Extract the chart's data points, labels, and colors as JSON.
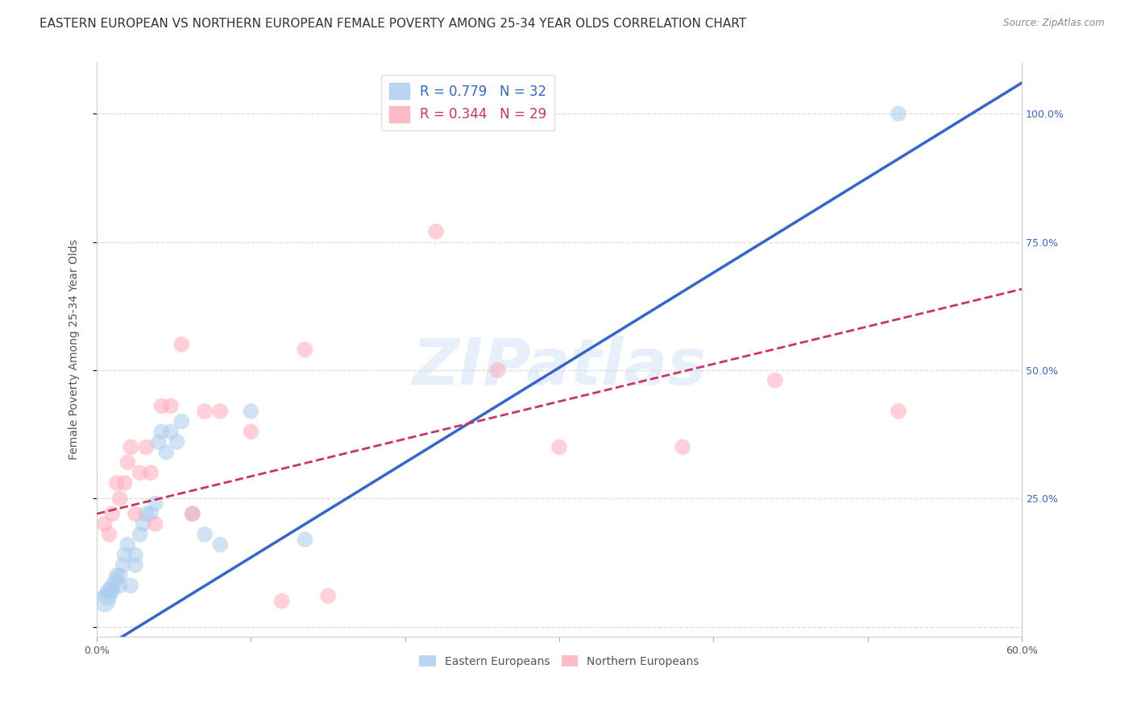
{
  "title": "EASTERN EUROPEAN VS NORTHERN EUROPEAN FEMALE POVERTY AMONG 25-34 YEAR OLDS CORRELATION CHART",
  "source": "Source: ZipAtlas.com",
  "ylabel": "Female Poverty Among 25-34 Year Olds",
  "xlim": [
    0.0,
    0.6
  ],
  "ylim": [
    -0.02,
    1.1
  ],
  "plot_ylim": [
    -0.02,
    1.1
  ],
  "xticks": [
    0.0,
    0.1,
    0.2,
    0.3,
    0.4,
    0.5,
    0.6
  ],
  "xticklabels": [
    "0.0%",
    "",
    "",
    "",
    "",
    "",
    "60.0%"
  ],
  "yticks": [
    0.0,
    0.25,
    0.5,
    0.75,
    1.0
  ],
  "yticklabels_right": [
    "",
    "25.0%",
    "50.0%",
    "75.0%",
    "100.0%"
  ],
  "watermark": "ZIPatlas",
  "eastern_europeans": {
    "color": "#aaccee",
    "trendline_color": "#3366cc",
    "x": [
      0.005,
      0.007,
      0.008,
      0.01,
      0.01,
      0.012,
      0.013,
      0.015,
      0.015,
      0.017,
      0.018,
      0.02,
      0.022,
      0.025,
      0.025,
      0.028,
      0.03,
      0.032,
      0.035,
      0.038,
      0.04,
      0.042,
      0.045,
      0.048,
      0.052,
      0.055,
      0.062,
      0.07,
      0.08,
      0.1,
      0.135,
      0.52
    ],
    "y": [
      0.05,
      0.06,
      0.07,
      0.07,
      0.08,
      0.09,
      0.1,
      0.08,
      0.1,
      0.12,
      0.14,
      0.16,
      0.08,
      0.12,
      0.14,
      0.18,
      0.2,
      0.22,
      0.22,
      0.24,
      0.36,
      0.38,
      0.34,
      0.38,
      0.36,
      0.4,
      0.22,
      0.18,
      0.16,
      0.42,
      0.17,
      1.0
    ],
    "sizes": [
      400,
      300,
      250,
      200,
      200,
      200,
      200,
      200,
      200,
      200,
      200,
      200,
      200,
      200,
      200,
      200,
      200,
      200,
      200,
      200,
      200,
      200,
      200,
      200,
      200,
      200,
      200,
      200,
      200,
      200,
      200,
      200
    ],
    "trendline_intercept": -0.05,
    "trendline_slope": 1.85
  },
  "northern_europeans": {
    "color": "#ffaabb",
    "trendline_color": "#cc3366",
    "x": [
      0.005,
      0.008,
      0.01,
      0.013,
      0.015,
      0.018,
      0.02,
      0.022,
      0.025,
      0.028,
      0.032,
      0.035,
      0.038,
      0.042,
      0.048,
      0.055,
      0.062,
      0.07,
      0.08,
      0.1,
      0.12,
      0.135,
      0.15,
      0.22,
      0.26,
      0.3,
      0.38,
      0.44,
      0.52
    ],
    "y": [
      0.2,
      0.18,
      0.22,
      0.28,
      0.25,
      0.28,
      0.32,
      0.35,
      0.22,
      0.3,
      0.35,
      0.3,
      0.2,
      0.43,
      0.43,
      0.55,
      0.22,
      0.42,
      0.42,
      0.38,
      0.05,
      0.54,
      0.06,
      0.77,
      0.5,
      0.35,
      0.35,
      0.48,
      0.42
    ],
    "sizes": [
      200,
      200,
      200,
      200,
      200,
      200,
      200,
      200,
      200,
      200,
      200,
      200,
      200,
      200,
      200,
      200,
      200,
      200,
      200,
      200,
      200,
      200,
      200,
      200,
      200,
      200,
      200,
      200,
      200
    ],
    "trendline_intercept": 0.22,
    "trendline_slope": 0.73
  },
  "background_color": "#ffffff",
  "grid_color": "#dddddd",
  "title_fontsize": 11,
  "axis_label_fontsize": 10,
  "tick_fontsize": 9
}
